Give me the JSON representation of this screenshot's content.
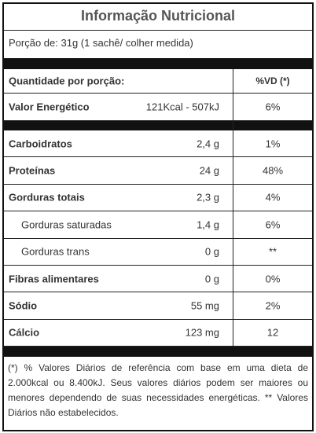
{
  "header": {
    "title": "Informação Nutricional",
    "serving": "Porção de: 31g (1 sachê/ colher medida)"
  },
  "table": {
    "header": [
      "Quantidade por porção:",
      "%VD (*)"
    ],
    "energy": [
      "Valor Energético",
      "121Kcal - 507kJ",
      "6%"
    ],
    "rows": [
      [
        "Carboidratos",
        "2,4 g",
        "1%"
      ],
      [
        "Proteínas",
        "24 g",
        "48%"
      ],
      [
        "Gorduras totais",
        "2,3 g",
        "4%"
      ],
      [
        "Gorduras saturadas",
        "1,4 g",
        "6%"
      ],
      [
        "Gorduras trans",
        "0 g",
        "**"
      ],
      [
        "Fibras alimentares",
        "0 g",
        "0%"
      ],
      [
        "Sódio",
        "55 mg",
        "2%"
      ],
      [
        "Cálcio",
        "123 mg",
        "12"
      ]
    ]
  },
  "footnote": "(*) % Valores Diários de referência com base em uma dieta de 2.000kcal ou 8.400kJ. Seus valores diários podem ser maiores ou menores dependendo de suas necessidades energéticas. ** Valores Diários não estabelecidos."
}
